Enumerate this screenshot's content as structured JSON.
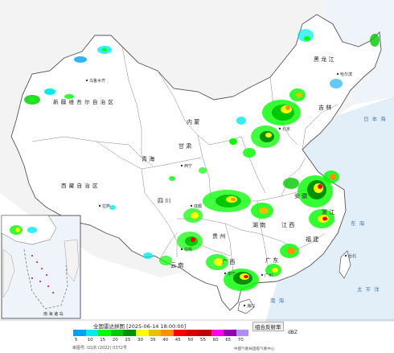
{
  "map": {
    "regions": [
      {
        "id": "xinjiang",
        "text": "新 疆 维 吾 尔 自 治 区"
      },
      {
        "id": "xizang",
        "text": "西 藏 自 治 区"
      },
      {
        "id": "qinghai",
        "text": "青 海"
      },
      {
        "id": "sichuan",
        "text": "四 川"
      },
      {
        "id": "gansu",
        "text": "甘 肃"
      },
      {
        "id": "neimenggu",
        "text": "内 蒙"
      },
      {
        "id": "yunnan",
        "text": "云 南"
      },
      {
        "id": "heilongjiang",
        "text": "黑 龙 江"
      },
      {
        "id": "jilin",
        "text": "吉 林"
      },
      {
        "id": "guangxi",
        "text": "广 西"
      },
      {
        "id": "guangdong",
        "text": "广 东"
      },
      {
        "id": "jiangxi",
        "text": "江 西"
      },
      {
        "id": "hunan",
        "text": "湖 南"
      },
      {
        "id": "guizhou",
        "text": "贵 州"
      },
      {
        "id": "anhui",
        "text": "安 徽"
      },
      {
        "id": "fujian",
        "text": "福 建"
      },
      {
        "id": "zhejiang",
        "text": "浙 江"
      }
    ],
    "cities": [
      {
        "id": "urumqi",
        "text": "乌鲁木齐"
      },
      {
        "id": "lhasa",
        "text": "拉萨"
      },
      {
        "id": "xining",
        "text": "西宁"
      },
      {
        "id": "chengdu",
        "text": "成都"
      },
      {
        "id": "kunming",
        "text": "昆明"
      },
      {
        "id": "harbin",
        "text": "哈尔滨"
      },
      {
        "id": "beijing",
        "text": "北京"
      },
      {
        "id": "nanning",
        "text": "南宁"
      },
      {
        "id": "guangzhou",
        "text": "广州"
      },
      {
        "id": "haikou",
        "text": "海口"
      },
      {
        "id": "taibei",
        "text": "台北"
      }
    ],
    "seas": [
      {
        "id": "riben-hai",
        "text": "日 本 海"
      },
      {
        "id": "donghai",
        "text": "东 海"
      },
      {
        "id": "taipingyang",
        "text": "太 平 洋"
      },
      {
        "id": "nanhai",
        "text": "南 海"
      }
    ],
    "inset_label": "南 海 诸 岛"
  },
  "legend": {
    "title": "全国雷达拼图 [2025-06-14 18:00:00]",
    "product": "组合反射率",
    "unit": "dBZ",
    "ticks": [
      "5",
      "10",
      "15",
      "20",
      "25",
      "30",
      "35",
      "40",
      "45",
      "50",
      "55",
      "60",
      "65",
      "70"
    ],
    "colors": [
      "#01a0f6",
      "#00ecec",
      "#01ff00",
      "#00c800",
      "#019000",
      "#ffff00",
      "#e7c000",
      "#ff9000",
      "#ff0000",
      "#d60000",
      "#c00000",
      "#ff00f0",
      "#9600b4",
      "#ad90f0"
    ],
    "approval": "审图号: GS京 (2022) 0372号",
    "source": "中国气象局国家气象中心"
  }
}
